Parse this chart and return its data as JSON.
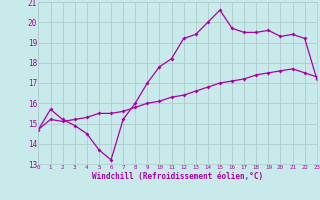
{
  "xlabel": "Windchill (Refroidissement éolien,°C)",
  "bg_color": "#c8eaea",
  "grid_color": "#b0cccc",
  "line_color": "#aa00aa",
  "xmin": 0,
  "xmax": 23,
  "ymin": 13,
  "ymax": 21,
  "line1_x": [
    0,
    1,
    2,
    3,
    4,
    5,
    6,
    7,
    8,
    9,
    10,
    11,
    12,
    13,
    14,
    15,
    16,
    17,
    18,
    19,
    20,
    21,
    22,
    23
  ],
  "line1_y": [
    14.7,
    15.7,
    15.2,
    14.9,
    14.5,
    13.7,
    13.2,
    15.2,
    16.0,
    17.0,
    17.8,
    18.2,
    19.2,
    19.4,
    20.0,
    20.6,
    19.7,
    19.5,
    19.5,
    19.6,
    19.3,
    19.4,
    19.2,
    17.2
  ],
  "line2_x": [
    0,
    1,
    2,
    3,
    4,
    5,
    6,
    7,
    8,
    9,
    10,
    11,
    12,
    13,
    14,
    15,
    16,
    17,
    18,
    19,
    20,
    21,
    22,
    23
  ],
  "line2_y": [
    14.7,
    15.2,
    15.1,
    15.2,
    15.3,
    15.5,
    15.5,
    15.6,
    15.8,
    16.0,
    16.1,
    16.3,
    16.4,
    16.6,
    16.8,
    17.0,
    17.1,
    17.2,
    17.4,
    17.5,
    17.6,
    17.7,
    17.5,
    17.3
  ],
  "xtick_labels": [
    "0",
    "1",
    "2",
    "3",
    "4",
    "5",
    "6",
    "7",
    "8",
    "9",
    "10",
    "11",
    "12",
    "13",
    "14",
    "15",
    "16",
    "17",
    "18",
    "19",
    "20",
    "21",
    "22",
    "23"
  ],
  "ytick_labels": [
    "13",
    "14",
    "15",
    "16",
    "17",
    "18",
    "19",
    "20",
    "21"
  ]
}
